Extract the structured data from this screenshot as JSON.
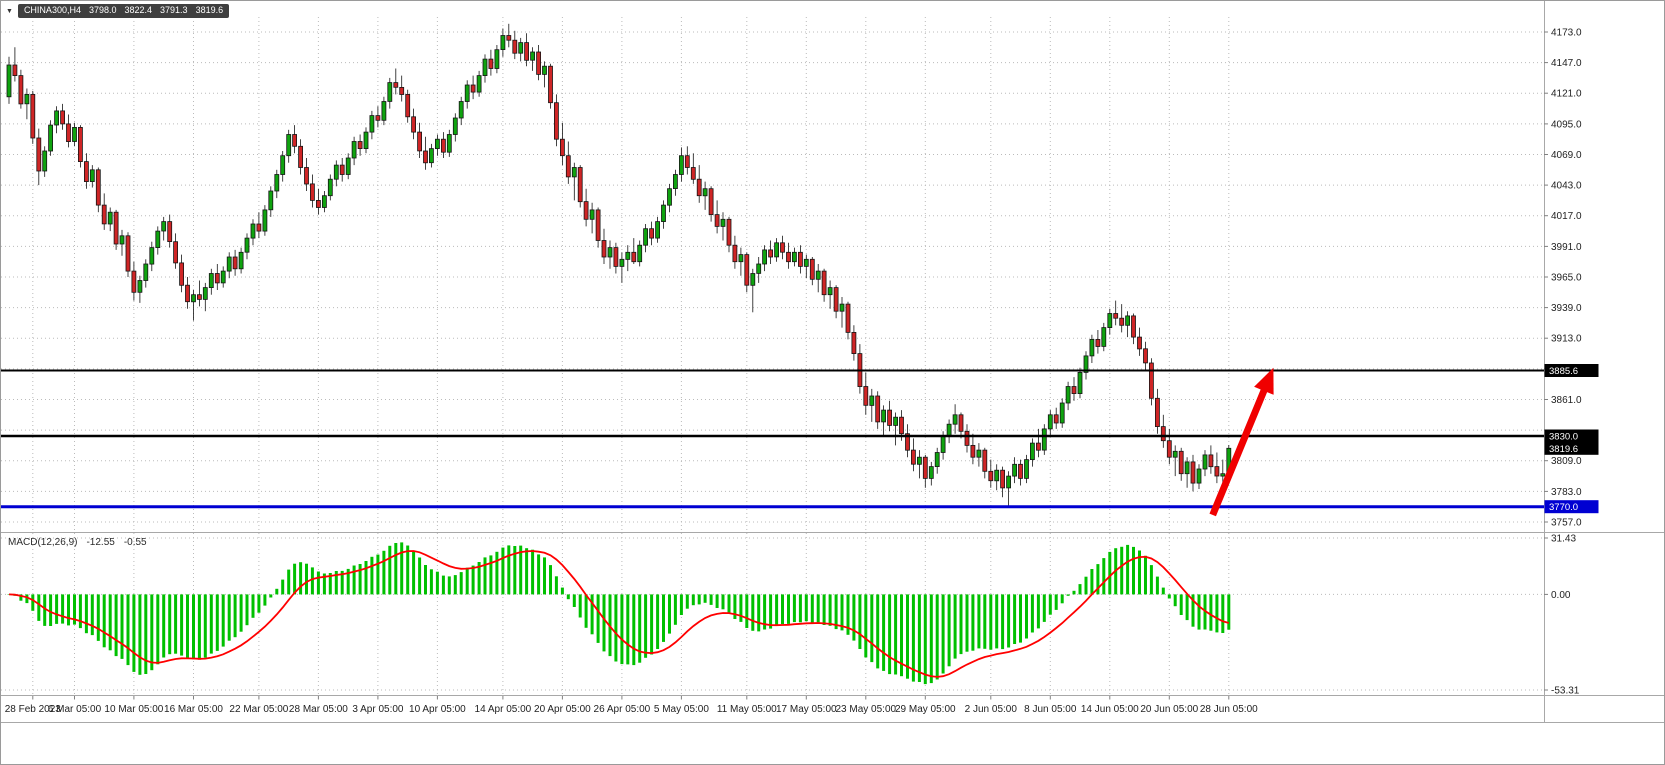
{
  "header": {
    "dropdown_icon": "▼",
    "symbol": "CHINA300,H4",
    "open": "3798.0",
    "high": "3822.4",
    "low": "3791.3",
    "close": "3819.6"
  },
  "indicator_label": {
    "name": "MACD(12,26,9)",
    "main_value": "-12.55",
    "signal_value": "-0.55"
  },
  "chart_data": {
    "type": "candlestick",
    "symbol": "CHINA300",
    "timeframe": "H4",
    "price_axis_ticks": [
      4173.0,
      4147.0,
      4121.0,
      4095.0,
      4069.0,
      4043.0,
      4017.0,
      3991.0,
      3965.0,
      3939.0,
      3913.0,
      3887.0,
      3861.0,
      3835.0,
      3809.0,
      3783.0,
      3757.0
    ],
    "price_axis_unlabeled": [
      3887.0,
      3835.0
    ],
    "horizontal_lines": [
      {
        "price": 3885.6,
        "label": "3885.6",
        "color": "#000000",
        "width": 2
      },
      {
        "price": 3830.0,
        "label": "3830.0",
        "color": "#000000",
        "width": 2.5
      },
      {
        "price": 3770.0,
        "label": "3770.0",
        "color": "#0000d2",
        "width": 3
      }
    ],
    "current_price": 3819.6,
    "current_price_label": "3819.6",
    "time_axis": [
      {
        "label": "28 Feb 2023",
        "bar": 4
      },
      {
        "label": "6 Mar 05:00",
        "bar": 11
      },
      {
        "label": "10 Mar 05:00",
        "bar": 21
      },
      {
        "label": "16 Mar 05:00",
        "bar": 31
      },
      {
        "label": "22 Mar 05:00",
        "bar": 42
      },
      {
        "label": "28 Mar 05:00",
        "bar": 52
      },
      {
        "label": "3 Apr 05:00",
        "bar": 62
      },
      {
        "label": "10 Apr 05:00",
        "bar": 72
      },
      {
        "label": "14 Apr 05:00",
        "bar": 83
      },
      {
        "label": "20 Apr 05:00",
        "bar": 93
      },
      {
        "label": "26 Apr 05:00",
        "bar": 103
      },
      {
        "label": "5 May 05:00",
        "bar": 113
      },
      {
        "label": "11 May 05:00",
        "bar": 124
      },
      {
        "label": "17 May 05:00",
        "bar": 134
      },
      {
        "label": "23 May 05:00",
        "bar": 144
      },
      {
        "label": "29 May 05:00",
        "bar": 154
      },
      {
        "label": "2 Jun 05:00",
        "bar": 165
      },
      {
        "label": "8 Jun 05:00",
        "bar": 175
      },
      {
        "label": "14 Jun 05:00",
        "bar": 185
      },
      {
        "label": "20 Jun 05:00",
        "bar": 195
      },
      {
        "label": "28 Jun 05:00",
        "bar": 205
      }
    ],
    "macd": {
      "params": "12,26,9",
      "axis_ticks": [
        31.43,
        0.0,
        -53.31
      ],
      "last_main": -12.55,
      "last_signal": -0.55
    },
    "annotation_arrow": {
      "from": {
        "bar": 202.3,
        "price": 3763
      },
      "to": {
        "bar": 212.5,
        "price": 3888
      }
    },
    "colors": {
      "bull": "#0fa30f",
      "bear": "#cf2526",
      "wick": "#151515",
      "grid": "#bbbbbb",
      "macd_hist": "#00c000",
      "macd_signal": "#ff0000",
      "arrow": "#f00000",
      "axis_text": "#222222",
      "tag_text": "#ffffff"
    },
    "candles": [
      [
        4118,
        4152,
        4112,
        4145
      ],
      [
        4145,
        4160,
        4131,
        4136
      ],
      [
        4136,
        4141,
        4108,
        4112
      ],
      [
        4112,
        4125,
        4099,
        4120
      ],
      [
        4120,
        4123,
        4078,
        4083
      ],
      [
        4083,
        4091,
        4043,
        4055
      ],
      [
        4055,
        4076,
        4050,
        4072
      ],
      [
        4072,
        4098,
        4068,
        4094
      ],
      [
        4094,
        4110,
        4087,
        4106
      ],
      [
        4106,
        4112,
        4090,
        4095
      ],
      [
        4095,
        4103,
        4075,
        4080
      ],
      [
        4080,
        4096,
        4076,
        4092
      ],
      [
        4092,
        4094,
        4058,
        4063
      ],
      [
        4063,
        4070,
        4040,
        4046
      ],
      [
        4046,
        4060,
        4041,
        4056
      ],
      [
        4056,
        4058,
        4020,
        4026
      ],
      [
        4026,
        4036,
        4005,
        4010
      ],
      [
        4010,
        4024,
        4004,
        4020
      ],
      [
        4020,
        4022,
        3988,
        3993
      ],
      [
        3993,
        4005,
        3983,
        4000
      ],
      [
        4000,
        4003,
        3965,
        3970
      ],
      [
        3970,
        3978,
        3945,
        3952
      ],
      [
        3952,
        3966,
        3943,
        3962
      ],
      [
        3962,
        3980,
        3956,
        3976
      ],
      [
        3976,
        3995,
        3970,
        3990
      ],
      [
        3990,
        4008,
        3984,
        4004
      ],
      [
        4004,
        4016,
        3996,
        4012
      ],
      [
        4012,
        4018,
        3990,
        3995
      ],
      [
        3995,
        4002,
        3972,
        3977
      ],
      [
        3977,
        3984,
        3952,
        3958
      ],
      [
        3958,
        3965,
        3938,
        3944
      ],
      [
        3944,
        3954,
        3928,
        3950
      ],
      [
        3950,
        3962,
        3940,
        3946
      ],
      [
        3946,
        3960,
        3936,
        3956
      ],
      [
        3956,
        3972,
        3950,
        3968
      ],
      [
        3968,
        3976,
        3954,
        3960
      ],
      [
        3960,
        3974,
        3956,
        3970
      ],
      [
        3970,
        3986,
        3964,
        3982
      ],
      [
        3982,
        3988,
        3966,
        3972
      ],
      [
        3972,
        3990,
        3968,
        3986
      ],
      [
        3986,
        4002,
        3980,
        3998
      ],
      [
        3998,
        4014,
        3992,
        4010
      ],
      [
        4010,
        4020,
        3998,
        4004
      ],
      [
        4004,
        4026,
        4000,
        4022
      ],
      [
        4022,
        4042,
        4016,
        4038
      ],
      [
        4038,
        4056,
        4032,
        4052
      ],
      [
        4052,
        4072,
        4046,
        4068
      ],
      [
        4068,
        4090,
        4062,
        4086
      ],
      [
        4086,
        4094,
        4070,
        4076
      ],
      [
        4076,
        4082,
        4052,
        4058
      ],
      [
        4058,
        4066,
        4038,
        4044
      ],
      [
        4044,
        4052,
        4024,
        4030
      ],
      [
        4030,
        4040,
        4018,
        4024
      ],
      [
        4024,
        4038,
        4020,
        4034
      ],
      [
        4034,
        4052,
        4030,
        4048
      ],
      [
        4048,
        4064,
        4042,
        4060
      ],
      [
        4060,
        4066,
        4046,
        4052
      ],
      [
        4052,
        4070,
        4048,
        4066
      ],
      [
        4066,
        4084,
        4060,
        4080
      ],
      [
        4080,
        4086,
        4068,
        4074
      ],
      [
        4074,
        4092,
        4070,
        4088
      ],
      [
        4088,
        4106,
        4082,
        4102
      ],
      [
        4102,
        4110,
        4092,
        4098
      ],
      [
        4098,
        4118,
        4094,
        4114
      ],
      [
        4114,
        4134,
        4108,
        4130
      ],
      [
        4130,
        4142,
        4120,
        4126
      ],
      [
        4126,
        4136,
        4114,
        4120
      ],
      [
        4120,
        4124,
        4096,
        4101
      ],
      [
        4101,
        4108,
        4082,
        4088
      ],
      [
        4088,
        4096,
        4066,
        4072
      ],
      [
        4072,
        4084,
        4056,
        4062
      ],
      [
        4062,
        4078,
        4058,
        4074
      ],
      [
        4074,
        4086,
        4068,
        4082
      ],
      [
        4082,
        4088,
        4066,
        4071
      ],
      [
        4071,
        4090,
        4067,
        4086
      ],
      [
        4086,
        4104,
        4080,
        4100
      ],
      [
        4100,
        4118,
        4094,
        4114
      ],
      [
        4114,
        4132,
        4108,
        4128
      ],
      [
        4128,
        4136,
        4116,
        4122
      ],
      [
        4122,
        4140,
        4118,
        4136
      ],
      [
        4136,
        4154,
        4130,
        4150
      ],
      [
        4150,
        4158,
        4136,
        4142
      ],
      [
        4142,
        4162,
        4138,
        4158
      ],
      [
        4158,
        4176,
        4152,
        4170
      ],
      [
        4170,
        4180,
        4160,
        4166
      ],
      [
        4166,
        4174,
        4150,
        4155
      ],
      [
        4155,
        4168,
        4148,
        4164
      ],
      [
        4164,
        4172,
        4144,
        4149
      ],
      [
        4149,
        4160,
        4140,
        4156
      ],
      [
        4156,
        4162,
        4132,
        4137
      ],
      [
        4137,
        4148,
        4126,
        4144
      ],
      [
        4144,
        4146,
        4108,
        4113
      ],
      [
        4113,
        4120,
        4076,
        4082
      ],
      [
        4082,
        4096,
        4060,
        4068
      ],
      [
        4068,
        4080,
        4044,
        4050
      ],
      [
        4050,
        4062,
        4030,
        4058
      ],
      [
        4058,
        4060,
        4024,
        4029
      ],
      [
        4029,
        4040,
        4008,
        4014
      ],
      [
        4014,
        4028,
        4002,
        4022
      ],
      [
        4022,
        4024,
        3990,
        3996
      ],
      [
        3996,
        4006,
        3976,
        3982
      ],
      [
        3982,
        3996,
        3972,
        3990
      ],
      [
        3990,
        3994,
        3968,
        3974
      ],
      [
        3974,
        3986,
        3960,
        3980
      ],
      [
        3980,
        3992,
        3970,
        3986
      ],
      [
        3986,
        3998,
        3976,
        3978
      ],
      [
        3978,
        3996,
        3974,
        3992
      ],
      [
        3992,
        4010,
        3986,
        4006
      ],
      [
        4006,
        4012,
        3992,
        3998
      ],
      [
        3998,
        4016,
        3994,
        4012
      ],
      [
        4012,
        4030,
        4006,
        4026
      ],
      [
        4026,
        4044,
        4020,
        4040
      ],
      [
        4040,
        4056,
        4034,
        4052
      ],
      [
        4052,
        4075,
        4046,
        4068
      ],
      [
        4068,
        4076,
        4052,
        4058
      ],
      [
        4058,
        4070,
        4044,
        4048
      ],
      [
        4048,
        4060,
        4028,
        4034
      ],
      [
        4034,
        4046,
        4022,
        4040
      ],
      [
        4040,
        4042,
        4012,
        4018
      ],
      [
        4018,
        4030,
        4002,
        4008
      ],
      [
        4008,
        4020,
        3996,
        4014
      ],
      [
        4014,
        4016,
        3986,
        3992
      ],
      [
        3992,
        4000,
        3972,
        3978
      ],
      [
        3978,
        3990,
        3966,
        3984
      ],
      [
        3984,
        3986,
        3952,
        3958
      ],
      [
        3958,
        3972,
        3935,
        3968
      ],
      [
        3968,
        3982,
        3960,
        3976
      ],
      [
        3976,
        3992,
        3970,
        3988
      ],
      [
        3988,
        3996,
        3976,
        3982
      ],
      [
        3982,
        3998,
        3978,
        3994
      ],
      [
        3994,
        4000,
        3980,
        3986
      ],
      [
        3986,
        3994,
        3972,
        3978
      ],
      [
        3978,
        3990,
        3974,
        3986
      ],
      [
        3986,
        3992,
        3968,
        3974
      ],
      [
        3974,
        3984,
        3964,
        3980
      ],
      [
        3980,
        3982,
        3958,
        3963
      ],
      [
        3963,
        3976,
        3952,
        3970
      ],
      [
        3970,
        3972,
        3944,
        3950
      ],
      [
        3950,
        3962,
        3938,
        3956
      ],
      [
        3956,
        3958,
        3930,
        3936
      ],
      [
        3936,
        3948,
        3922,
        3942
      ],
      [
        3942,
        3944,
        3912,
        3918
      ],
      [
        3918,
        3924,
        3894,
        3900
      ],
      [
        3900,
        3908,
        3866,
        3872
      ],
      [
        3872,
        3884,
        3848,
        3856
      ],
      [
        3856,
        3870,
        3842,
        3864
      ],
      [
        3864,
        3868,
        3836,
        3842
      ],
      [
        3842,
        3856,
        3830,
        3852
      ],
      [
        3852,
        3860,
        3834,
        3839
      ],
      [
        3839,
        3850,
        3822,
        3846
      ],
      [
        3846,
        3852,
        3826,
        3832
      ],
      [
        3832,
        3840,
        3812,
        3818
      ],
      [
        3818,
        3828,
        3800,
        3806
      ],
      [
        3806,
        3818,
        3794,
        3812
      ],
      [
        3812,
        3814,
        3786,
        3794
      ],
      [
        3794,
        3808,
        3788,
        3804
      ],
      [
        3804,
        3820,
        3798,
        3816
      ],
      [
        3816,
        3834,
        3810,
        3830
      ],
      [
        3830,
        3844,
        3824,
        3840
      ],
      [
        3840,
        3857,
        3832,
        3848
      ],
      [
        3848,
        3850,
        3828,
        3834
      ],
      [
        3834,
        3840,
        3816,
        3822
      ],
      [
        3822,
        3832,
        3806,
        3812
      ],
      [
        3812,
        3824,
        3804,
        3818
      ],
      [
        3818,
        3820,
        3794,
        3800
      ],
      [
        3800,
        3810,
        3786,
        3792
      ],
      [
        3792,
        3806,
        3784,
        3801
      ],
      [
        3801,
        3804,
        3778,
        3786
      ],
      [
        3786,
        3800,
        3770,
        3796
      ],
      [
        3796,
        3812,
        3790,
        3806
      ],
      [
        3806,
        3810,
        3788,
        3794
      ],
      [
        3794,
        3814,
        3790,
        3810
      ],
      [
        3810,
        3828,
        3804,
        3824
      ],
      [
        3824,
        3836,
        3812,
        3818
      ],
      [
        3818,
        3840,
        3814,
        3836
      ],
      [
        3836,
        3852,
        3830,
        3848
      ],
      [
        3848,
        3854,
        3836,
        3841
      ],
      [
        3841,
        3862,
        3837,
        3858
      ],
      [
        3858,
        3876,
        3852,
        3872
      ],
      [
        3872,
        3880,
        3860,
        3866
      ],
      [
        3866,
        3888,
        3862,
        3884
      ],
      [
        3884,
        3902,
        3878,
        3898
      ],
      [
        3898,
        3916,
        3892,
        3912
      ],
      [
        3912,
        3920,
        3900,
        3906
      ],
      [
        3906,
        3926,
        3902,
        3922
      ],
      [
        3922,
        3938,
        3916,
        3934
      ],
      [
        3934,
        3945,
        3924,
        3930
      ],
      [
        3930,
        3942,
        3918,
        3924
      ],
      [
        3924,
        3936,
        3914,
        3932
      ],
      [
        3932,
        3934,
        3908,
        3914
      ],
      [
        3914,
        3922,
        3898,
        3904
      ],
      [
        3904,
        3910,
        3886,
        3892
      ],
      [
        3892,
        3896,
        3856,
        3862
      ],
      [
        3862,
        3870,
        3832,
        3838
      ],
      [
        3838,
        3848,
        3820,
        3826
      ],
      [
        3826,
        3836,
        3806,
        3812
      ],
      [
        3812,
        3822,
        3796,
        3817
      ],
      [
        3817,
        3820,
        3792,
        3798
      ],
      [
        3798,
        3812,
        3786,
        3808
      ],
      [
        3808,
        3814,
        3783,
        3790
      ],
      [
        3790,
        3806,
        3785,
        3802
      ],
      [
        3802,
        3818,
        3796,
        3814
      ],
      [
        3814,
        3822,
        3798,
        3804
      ],
      [
        3804,
        3816,
        3790,
        3796
      ],
      [
        3796,
        3810,
        3788,
        3798
      ],
      [
        3798,
        3822.4,
        3791.3,
        3819.6
      ]
    ]
  }
}
